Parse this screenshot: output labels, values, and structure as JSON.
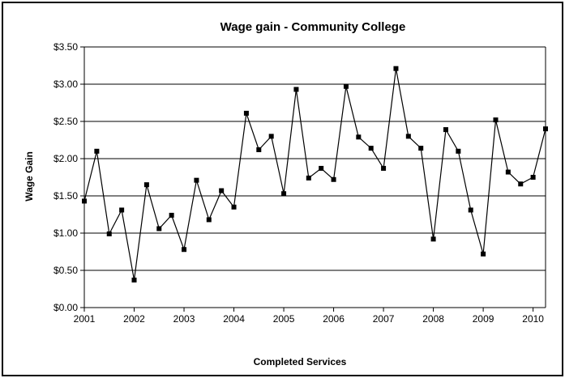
{
  "chart_data": {
    "type": "line",
    "title": "Wage gain - Community College",
    "xlabel": "Completed Services",
    "ylabel": "Wage Gain",
    "ylim": [
      0,
      3.5
    ],
    "yticks": [
      "$0.00",
      "$0.50",
      "$1.00",
      "$1.50",
      "$2.00",
      "$2.50",
      "$3.00",
      "$3.50"
    ],
    "xlim": [
      2001,
      2010.25
    ],
    "xticks": [
      "2001",
      "2002",
      "2003",
      "2004",
      "2005",
      "2006",
      "2007",
      "2008",
      "2009",
      "2010"
    ],
    "grid": true,
    "legend": "none",
    "series": [
      {
        "x": [
          2001.0,
          2001.25,
          2001.5,
          2001.75,
          2002.0,
          2002.25,
          2002.5,
          2002.75,
          2003.0,
          2003.25,
          2003.5,
          2003.75,
          2004.0,
          2004.25,
          2004.5,
          2004.75,
          2005.0,
          2005.25,
          2005.5,
          2005.75,
          2006.0,
          2006.25,
          2006.5,
          2006.75,
          2007.0,
          2007.25,
          2007.5,
          2007.75,
          2008.0,
          2008.25,
          2008.5,
          2008.75,
          2009.0,
          2009.25,
          2009.5,
          2009.75,
          2010.0,
          2010.25
        ],
        "values": [
          1.43,
          2.1,
          0.99,
          1.31,
          0.37,
          1.65,
          1.06,
          1.24,
          0.78,
          1.71,
          1.18,
          1.57,
          1.35,
          2.61,
          2.12,
          2.3,
          1.53,
          2.93,
          1.74,
          1.87,
          1.72,
          2.97,
          2.29,
          2.14,
          1.87,
          3.21,
          2.3,
          2.14,
          0.92,
          2.39,
          2.1,
          1.31,
          0.72,
          2.52,
          1.82,
          1.66,
          1.75,
          2.4
        ]
      }
    ],
    "line_color": "#000000",
    "marker_color": "#000000",
    "grid_color": "#000000"
  }
}
